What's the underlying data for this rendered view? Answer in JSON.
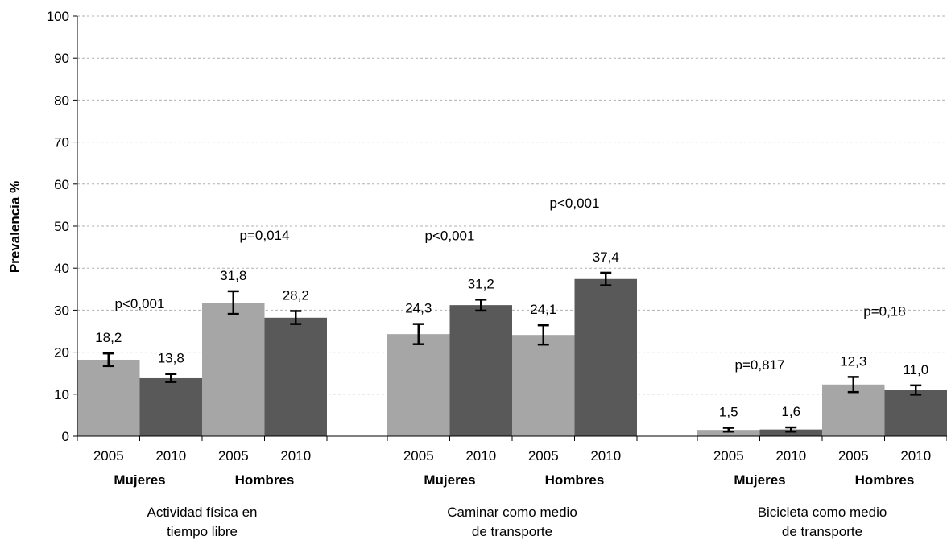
{
  "chart_data": {
    "type": "bar",
    "ylabel": "Prevalencia %",
    "ylim": [
      0,
      100
    ],
    "y_ticks": [
      0,
      10,
      20,
      30,
      40,
      50,
      60,
      70,
      80,
      90,
      100
    ],
    "grid": true,
    "colors": {
      "2005": "#a6a6a6",
      "2010": "#595959"
    },
    "groups": [
      {
        "label_lines": [
          "Actividad física en",
          "tiempo libre"
        ],
        "subgroups": [
          {
            "sex": "Mujeres",
            "p_value": "p<0,001",
            "bars": [
              {
                "year": "2005",
                "value": 18.2,
                "label": "18,2",
                "ci": [
                  16.7,
                  19.7
                ]
              },
              {
                "year": "2010",
                "value": 13.8,
                "label": "13,8",
                "ci": [
                  12.9,
                  14.8
                ]
              }
            ]
          },
          {
            "sex": "Hombres",
            "p_value": "p=0,014",
            "bars": [
              {
                "year": "2005",
                "value": 31.8,
                "label": "31,8",
                "ci": [
                  29.1,
                  34.5
                ]
              },
              {
                "year": "2010",
                "value": 28.2,
                "label": "28,2",
                "ci": [
                  26.7,
                  29.8
                ]
              }
            ]
          }
        ]
      },
      {
        "label_lines": [
          "Caminar como medio",
          "de transporte"
        ],
        "subgroups": [
          {
            "sex": "Mujeres",
            "p_value": "p<0,001",
            "bars": [
              {
                "year": "2005",
                "value": 24.3,
                "label": "24,3",
                "ci": [
                  21.9,
                  26.7
                ]
              },
              {
                "year": "2010",
                "value": 31.2,
                "label": "31,2",
                "ci": [
                  29.9,
                  32.5
                ]
              }
            ]
          },
          {
            "sex": "Hombres",
            "p_value": "p<0,001",
            "bars": [
              {
                "year": "2005",
                "value": 24.1,
                "label": "24,1",
                "ci": [
                  21.8,
                  26.4
                ]
              },
              {
                "year": "2010",
                "value": 37.4,
                "label": "37,4",
                "ci": [
                  35.9,
                  38.9
                ]
              }
            ]
          }
        ]
      },
      {
        "label_lines": [
          "Bicicleta como medio",
          "de transporte"
        ],
        "subgroups": [
          {
            "sex": "Mujeres",
            "p_value": "p=0,817",
            "bars": [
              {
                "year": "2005",
                "value": 1.5,
                "label": "1,5",
                "ci": [
                  1.1,
                  2.0
                ]
              },
              {
                "year": "2010",
                "value": 1.6,
                "label": "1,6",
                "ci": [
                  1.1,
                  2.1
                ]
              }
            ]
          },
          {
            "sex": "Hombres",
            "p_value": "p=0,18",
            "bars": [
              {
                "year": "2005",
                "value": 12.3,
                "label": "12,3",
                "ci": [
                  10.5,
                  14.1
                ]
              },
              {
                "year": "2010",
                "value": 11.0,
                "label": "11,0",
                "ci": [
                  9.9,
                  12.1
                ]
              }
            ]
          }
        ]
      }
    ]
  }
}
